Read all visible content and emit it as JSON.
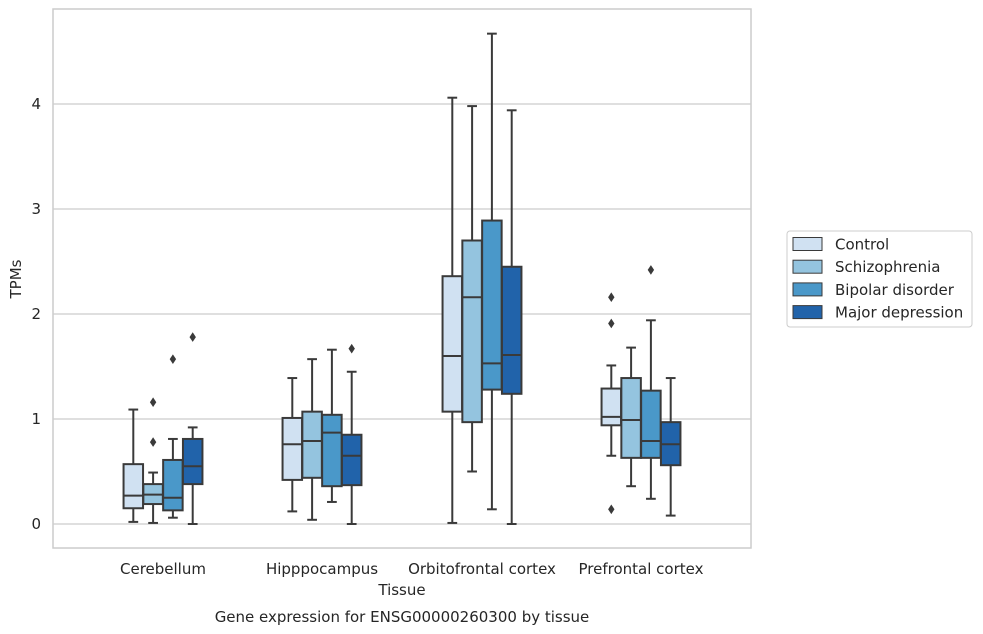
{
  "chart_data": {
    "type": "boxplot",
    "title": "Gene expression for ENSG00000260300 by tissue",
    "xlabel": "Tissue",
    "ylabel": "TPMs",
    "ylim": [
      -0.23,
      4.9
    ],
    "yticks": [
      0,
      1,
      2,
      3,
      4
    ],
    "grid": "horizontal",
    "legend_position": "right",
    "categories": [
      "Cerebellum",
      "Hipppocampus",
      "Orbitofrontal cortex",
      "Prefrontal cortex"
    ],
    "series": [
      {
        "name": "Control",
        "color": "#d0e1f2",
        "boxes": [
          {
            "whislo": 0.02,
            "q1": 0.15,
            "med": 0.27,
            "q3": 0.57,
            "whishi": 1.09,
            "fliers": []
          },
          {
            "whislo": 0.12,
            "q1": 0.42,
            "med": 0.76,
            "q3": 1.01,
            "whishi": 1.39,
            "fliers": []
          },
          {
            "whislo": 0.01,
            "q1": 1.07,
            "med": 1.6,
            "q3": 2.36,
            "whishi": 4.06,
            "fliers": []
          },
          {
            "whislo": 0.65,
            "q1": 0.94,
            "med": 1.02,
            "q3": 1.29,
            "whishi": 1.51,
            "fliers": [
              0.14,
              1.91,
              2.16
            ]
          }
        ]
      },
      {
        "name": "Schizophrenia",
        "color": "#94c4df",
        "boxes": [
          {
            "whislo": 0.01,
            "q1": 0.19,
            "med": 0.28,
            "q3": 0.38,
            "whishi": 0.49,
            "fliers": [
              0.78,
              1.16
            ]
          },
          {
            "whislo": 0.04,
            "q1": 0.44,
            "med": 0.79,
            "q3": 1.07,
            "whishi": 1.57,
            "fliers": []
          },
          {
            "whislo": 0.5,
            "q1": 0.97,
            "med": 2.16,
            "q3": 2.7,
            "whishi": 3.98,
            "fliers": []
          },
          {
            "whislo": 0.36,
            "q1": 0.63,
            "med": 0.99,
            "q3": 1.39,
            "whishi": 1.68,
            "fliers": []
          }
        ]
      },
      {
        "name": "Bipolar disorder",
        "color": "#4a98c9",
        "boxes": [
          {
            "whislo": 0.06,
            "q1": 0.13,
            "med": 0.25,
            "q3": 0.61,
            "whishi": 0.81,
            "fliers": [
              1.57
            ]
          },
          {
            "whislo": 0.21,
            "q1": 0.36,
            "med": 0.87,
            "q3": 1.04,
            "whishi": 1.66,
            "fliers": []
          },
          {
            "whislo": 0.14,
            "q1": 1.28,
            "med": 1.53,
            "q3": 2.89,
            "whishi": 4.67,
            "fliers": []
          },
          {
            "whislo": 0.24,
            "q1": 0.63,
            "med": 0.79,
            "q3": 1.27,
            "whishi": 1.94,
            "fliers": [
              2.42
            ]
          }
        ]
      },
      {
        "name": "Major depression",
        "color": "#2163aa",
        "boxes": [
          {
            "whislo": 0.0,
            "q1": 0.38,
            "med": 0.55,
            "q3": 0.81,
            "whishi": 0.92,
            "fliers": [
              1.78
            ]
          },
          {
            "whislo": 0.0,
            "q1": 0.37,
            "med": 0.65,
            "q3": 0.85,
            "whishi": 1.45,
            "fliers": [
              1.67
            ]
          },
          {
            "whislo": 0.0,
            "q1": 1.24,
            "med": 1.61,
            "q3": 2.45,
            "whishi": 3.94,
            "fliers": []
          },
          {
            "whislo": 0.08,
            "q1": 0.56,
            "med": 0.76,
            "q3": 0.97,
            "whishi": 1.39,
            "fliers": []
          }
        ]
      }
    ]
  }
}
